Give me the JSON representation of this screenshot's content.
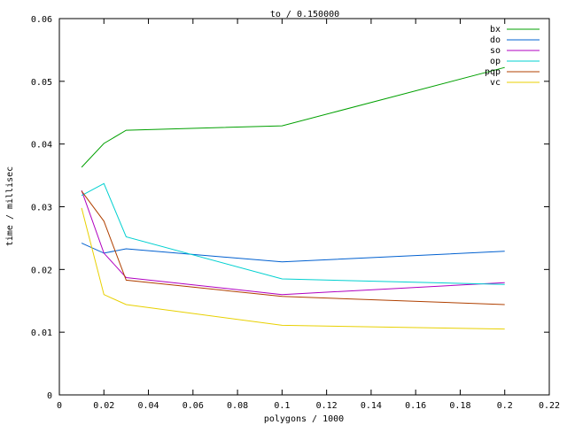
{
  "chart_data": {
    "type": "line",
    "title": "to / 0.150000",
    "xlabel": "polygons / 1000",
    "ylabel": "time / millisec",
    "xlim": [
      0,
      0.22
    ],
    "ylim": [
      0,
      0.06
    ],
    "x_ticks": [
      0,
      0.02,
      0.04,
      0.06,
      0.08,
      0.1,
      0.12,
      0.14,
      0.16,
      0.18,
      0.2,
      0.22
    ],
    "x_tick_labels": [
      "0",
      "0.02",
      "0.04",
      "0.06",
      "0.08",
      "0.1",
      "0.12",
      "0.14",
      "0.16",
      "0.18",
      "0.2",
      "0.22"
    ],
    "y_ticks": [
      0,
      0.01,
      0.02,
      0.03,
      0.04,
      0.05,
      0.06
    ],
    "y_tick_labels": [
      "0",
      "0.01",
      "0.02",
      "0.03",
      "0.04",
      "0.05",
      "0.06"
    ],
    "grid": false,
    "legend_position": "top-right",
    "x": [
      0.01,
      0.02,
      0.03,
      0.1,
      0.2
    ],
    "series": [
      {
        "name": "bx",
        "color": "#00a000",
        "values": [
          0.0363,
          0.0401,
          0.0422,
          0.0429,
          0.0522
        ]
      },
      {
        "name": "do",
        "color": "#0060d0",
        "values": [
          0.0242,
          0.0226,
          0.0233,
          0.0212,
          0.0229
        ]
      },
      {
        "name": "so",
        "color": "#b000c0",
        "values": [
          0.0326,
          0.0226,
          0.0187,
          0.016,
          0.0179
        ]
      },
      {
        "name": "op",
        "color": "#00d0d0",
        "values": [
          0.0318,
          0.0337,
          0.0252,
          0.0185,
          0.0176
        ]
      },
      {
        "name": "pqp",
        "color": "#b04000",
        "values": [
          0.0325,
          0.0277,
          0.0183,
          0.0157,
          0.0144
        ]
      },
      {
        "name": "vc",
        "color": "#e8d000",
        "values": [
          0.0298,
          0.016,
          0.0144,
          0.0111,
          0.0105
        ]
      }
    ]
  }
}
